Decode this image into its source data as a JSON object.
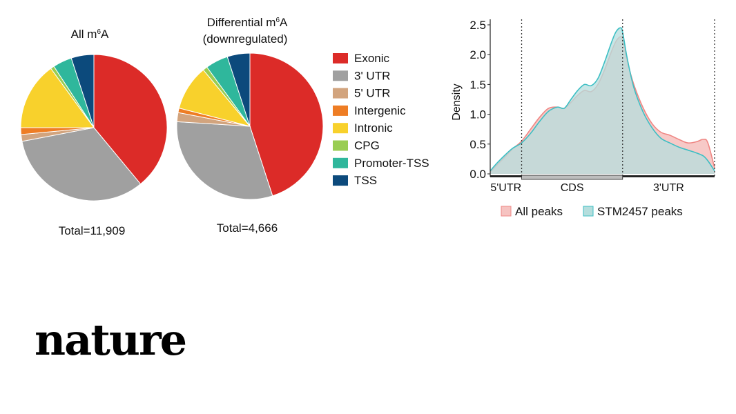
{
  "chart_data": [
    {
      "type": "pie",
      "title_prefix": "All m",
      "title_sup": "6",
      "title_suffix": "A",
      "total_label": "Total=11,909",
      "slices": [
        {
          "category": "Exonic",
          "value": 39.0
        },
        {
          "category": "3' UTR",
          "value": 33.0
        },
        {
          "category": "5' UTR",
          "value": 1.5
        },
        {
          "category": "Intergenic",
          "value": 1.5
        },
        {
          "category": "Intronic",
          "value": 15.0
        },
        {
          "category": "CPG",
          "value": 0.8
        },
        {
          "category": "Promoter-TSS",
          "value": 4.2
        },
        {
          "category": "TSS",
          "value": 5.0
        }
      ]
    },
    {
      "type": "pie",
      "title_line1_prefix": "Differential m",
      "title_sup": "6",
      "title_line1_suffix": "A",
      "title_line2": "(downregulated)",
      "total_label": "Total=4,666",
      "slices": [
        {
          "category": "Exonic",
          "value": 45.0
        },
        {
          "category": "3' UTR",
          "value": 31.0
        },
        {
          "category": "5' UTR",
          "value": 2.0
        },
        {
          "category": "Intergenic",
          "value": 1.0
        },
        {
          "category": "Intronic",
          "value": 10.0
        },
        {
          "category": "CPG",
          "value": 1.0
        },
        {
          "category": "Promoter-TSS",
          "value": 5.0
        },
        {
          "category": "TSS",
          "value": 5.0
        }
      ]
    },
    {
      "type": "area",
      "ylabel": "Density",
      "ylim": [
        0,
        2.5
      ],
      "yticks": [
        "0.0",
        "0.5",
        "1.0",
        "1.5",
        "2.0",
        "2.5"
      ],
      "xlim": [
        0,
        1
      ],
      "regions": [
        {
          "label": "5'UTR",
          "start": 0.0,
          "end": 0.14
        },
        {
          "label": "CDS",
          "start": 0.14,
          "end": 0.59
        },
        {
          "label": "3'UTR",
          "start": 0.59,
          "end": 1.0
        }
      ],
      "boundaries": [
        0.14,
        0.59,
        1.0
      ],
      "grid": false,
      "legend_position": "bottom",
      "series": [
        {
          "name": "All peaks",
          "x": [
            0.0,
            0.03,
            0.07,
            0.1,
            0.14,
            0.18,
            0.22,
            0.26,
            0.3,
            0.33,
            0.36,
            0.39,
            0.42,
            0.45,
            0.48,
            0.51,
            0.54,
            0.56,
            0.58,
            0.59,
            0.61,
            0.64,
            0.68,
            0.72,
            0.76,
            0.8,
            0.84,
            0.88,
            0.92,
            0.95,
            0.97,
            1.0
          ],
          "y": [
            0.03,
            0.15,
            0.3,
            0.42,
            0.55,
            0.75,
            0.95,
            1.1,
            1.12,
            1.1,
            1.2,
            1.32,
            1.4,
            1.38,
            1.5,
            1.75,
            2.05,
            2.22,
            2.3,
            2.25,
            1.9,
            1.5,
            1.12,
            0.85,
            0.7,
            0.65,
            0.58,
            0.52,
            0.54,
            0.58,
            0.52,
            0.1
          ]
        },
        {
          "name": "STM2457 peaks",
          "x": [
            0.0,
            0.03,
            0.07,
            0.1,
            0.14,
            0.18,
            0.22,
            0.26,
            0.3,
            0.33,
            0.36,
            0.39,
            0.42,
            0.45,
            0.48,
            0.51,
            0.54,
            0.56,
            0.58,
            0.59,
            0.61,
            0.64,
            0.68,
            0.72,
            0.76,
            0.8,
            0.84,
            0.88,
            0.92,
            0.95,
            0.97,
            1.0
          ],
          "y": [
            0.05,
            0.18,
            0.33,
            0.43,
            0.52,
            0.68,
            0.88,
            1.05,
            1.12,
            1.1,
            1.25,
            1.4,
            1.5,
            1.48,
            1.6,
            1.88,
            2.2,
            2.38,
            2.45,
            2.38,
            1.95,
            1.45,
            1.05,
            0.78,
            0.6,
            0.52,
            0.45,
            0.4,
            0.35,
            0.3,
            0.22,
            0.05
          ]
        }
      ]
    }
  ],
  "legend": {
    "categories": [
      {
        "label": "Exonic",
        "color": "#dc2b28"
      },
      {
        "label": "3' UTR",
        "color": "#a0a0a0"
      },
      {
        "label": "5' UTR",
        "color": "#d2a47e"
      },
      {
        "label": "Intergenic",
        "color": "#ee7d24"
      },
      {
        "label": "Intronic",
        "color": "#f8d12c"
      },
      {
        "label": "CPG",
        "color": "#99cd52"
      },
      {
        "label": "Promoter-TSS",
        "color": "#2fb79c"
      },
      {
        "label": "TSS",
        "color": "#0c4a7c"
      }
    ]
  },
  "density_colors": {
    "All peaks": "#ef8784",
    "STM2457 peaks": "#3dbfc4"
  },
  "brand": {
    "name": "nature"
  }
}
